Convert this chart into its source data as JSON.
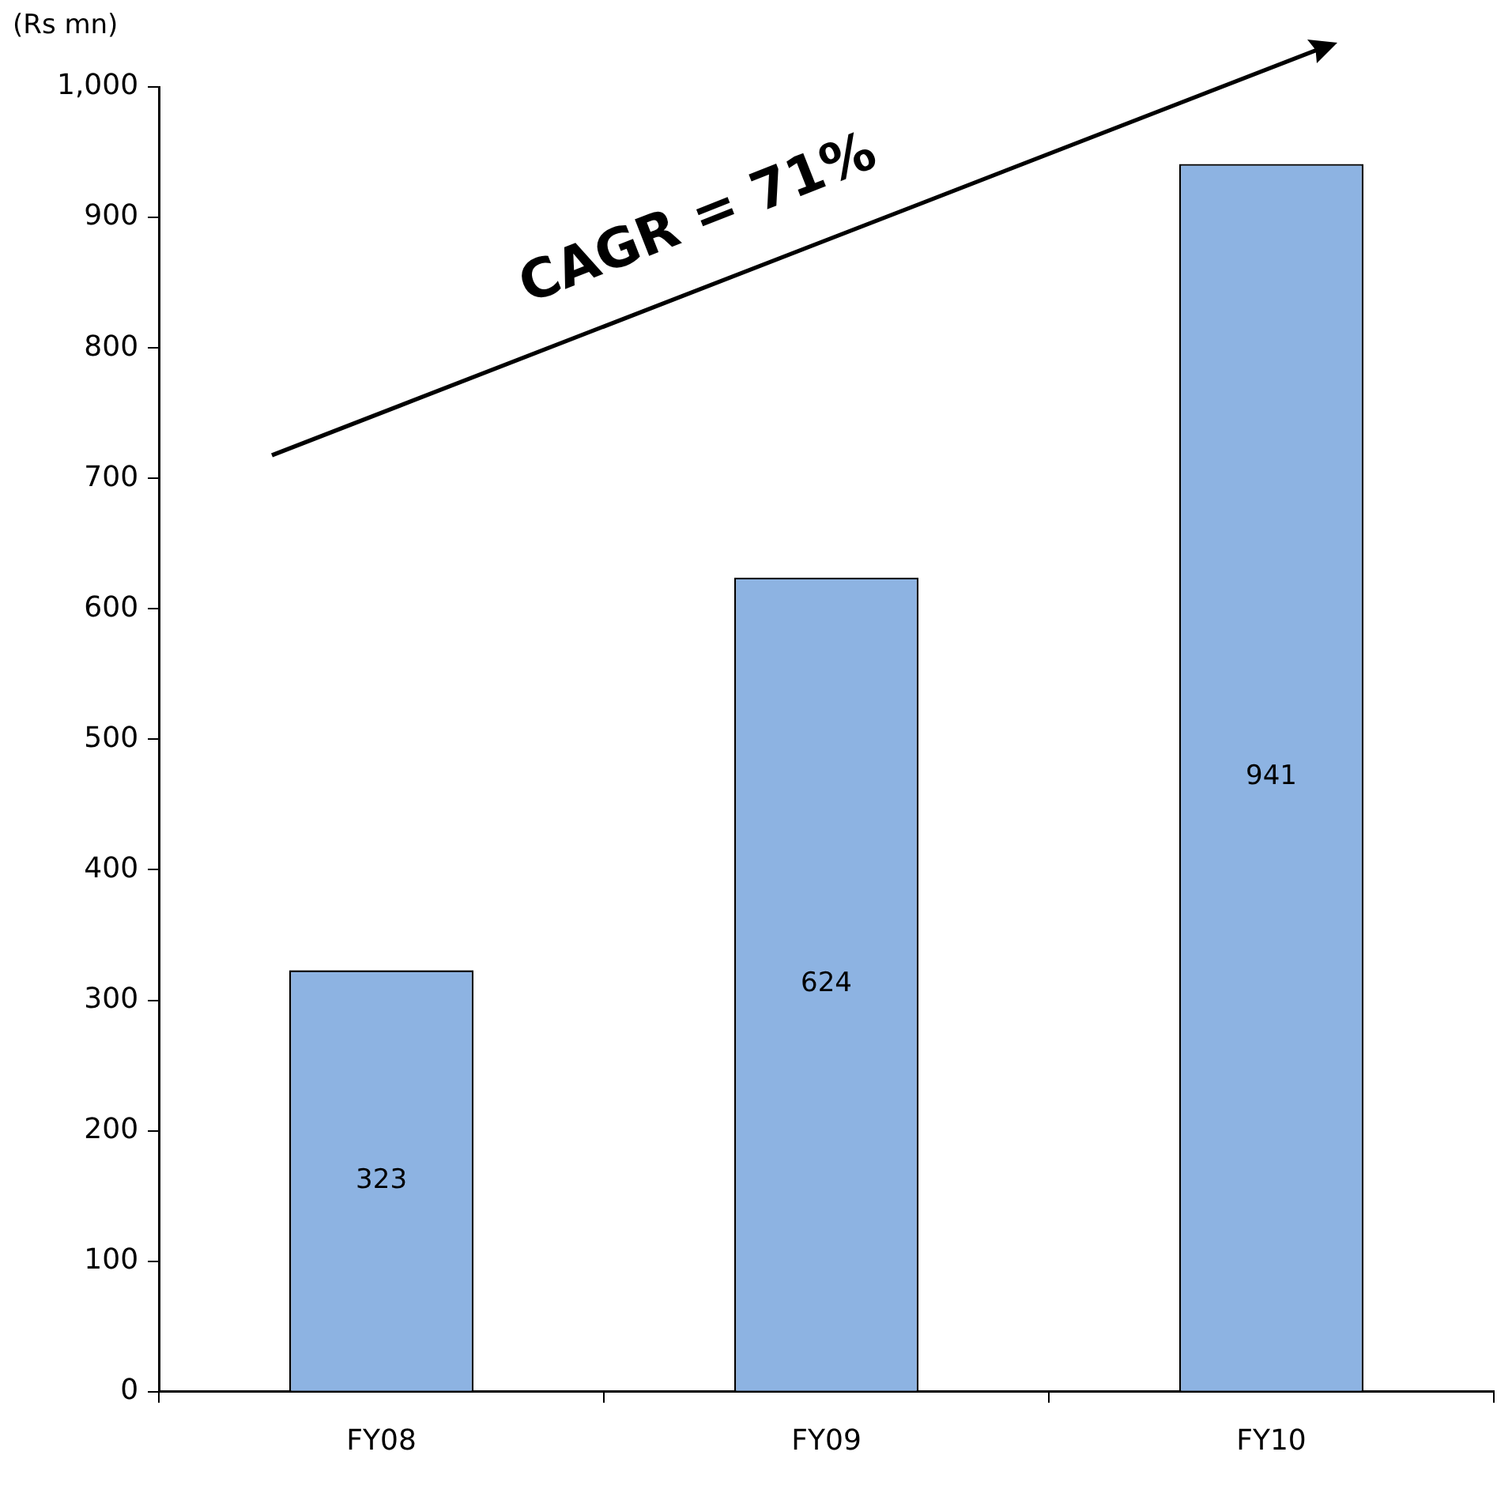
{
  "chart_data": {
    "type": "bar",
    "ylabel": "(Rs mn)",
    "categories": [
      "FY08",
      "FY09",
      "FY10"
    ],
    "values": [
      323,
      624,
      941
    ],
    "color": "#8db3e2",
    "data_labels": true,
    "ylim": [
      0,
      1000
    ],
    "yticks": [
      0,
      100,
      200,
      300,
      400,
      500,
      600,
      700,
      800,
      900,
      {
        "value": 1000,
        "label": "1,000"
      }
    ],
    "annotations": [
      "CAGR = 71%"
    ],
    "legend": false
  }
}
